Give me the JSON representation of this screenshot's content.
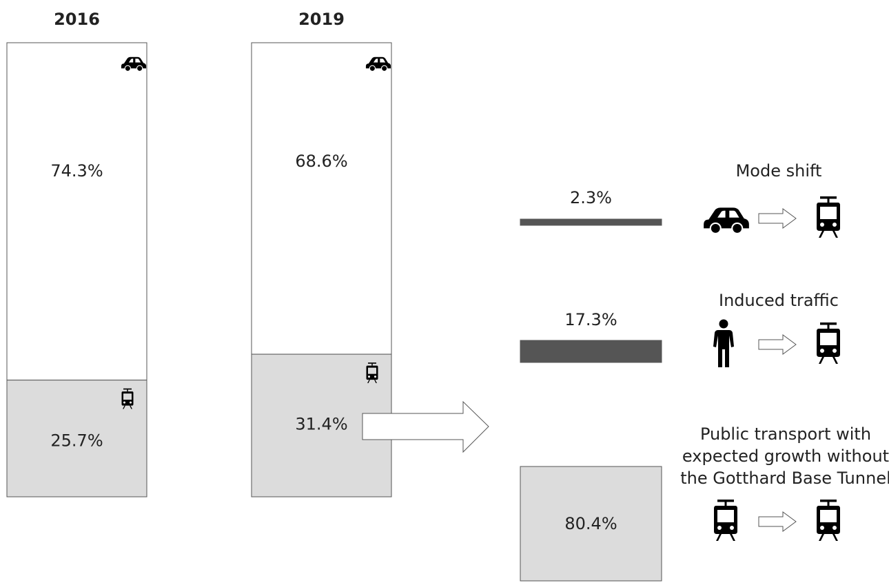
{
  "chart_data": {
    "type": "bar",
    "modes": {
      "car": "car-icon",
      "public_transport": "train-icon",
      "person": "person-icon",
      "arrow": "arrow-right-icon"
    },
    "colors": {
      "car_share": "#ffffff",
      "public_transport_share": "#dcdcdc",
      "growth_component_dark": "#555555",
      "growth_component_light": "#dcdcdc",
      "outline": "#555555"
    },
    "years": [
      {
        "label": "2016",
        "series": [
          {
            "mode": "car",
            "value": 74.3,
            "label": "74.3%"
          },
          {
            "mode": "public_transport",
            "value": 25.7,
            "label": "25.7%"
          }
        ]
      },
      {
        "label": "2019",
        "series": [
          {
            "mode": "car",
            "value": 68.6,
            "label": "68.6%"
          },
          {
            "mode": "public_transport",
            "value": 31.4,
            "label": "31.4%"
          }
        ]
      }
    ],
    "breakdown_of": "31.4%",
    "breakdown": [
      {
        "value": 2.3,
        "label": "2.3%",
        "title_lines": [
          "Mode shift"
        ],
        "from_icon": "car-icon",
        "to_icon": "train-icon"
      },
      {
        "value": 17.3,
        "label": "17.3%",
        "title_lines": [
          "Induced traffic"
        ],
        "from_icon": "person-icon",
        "to_icon": "train-icon"
      },
      {
        "value": 80.4,
        "label": "80.4%",
        "title_lines": [
          "Public transport with",
          "expected growth without",
          "the Gotthard Base Tunnel"
        ],
        "from_icon": "train-icon",
        "to_icon": "train-icon"
      }
    ]
  }
}
